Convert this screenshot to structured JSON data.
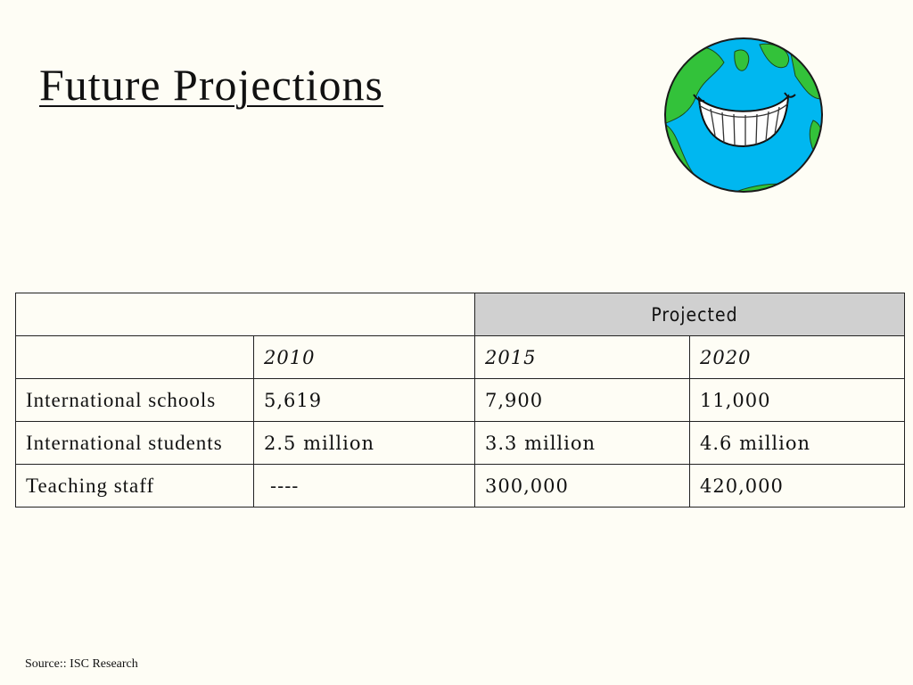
{
  "title": "Future Projections",
  "source": "Source:: ISC Research",
  "illustration": {
    "name": "smiling-globe",
    "colors": {
      "ocean": "#00b7f0",
      "land": "#33c23a"
    }
  },
  "table": {
    "group_header": "Projected",
    "years": [
      "2010",
      "2015",
      "2020"
    ],
    "rows": [
      {
        "label": "International schools",
        "values": [
          "5,619",
          "7,900",
          "11,000"
        ]
      },
      {
        "label": "International students",
        "values": [
          "2.5 million",
          "3.3 million",
          "4.6 million"
        ]
      },
      {
        "label": "Teaching staff",
        "values": [
          "----",
          "300,000",
          "420,000"
        ]
      }
    ]
  },
  "colors": {
    "background": "#fefdf5",
    "header_fill": "#d0d0d0"
  }
}
